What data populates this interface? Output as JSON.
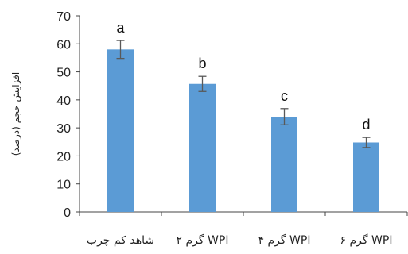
{
  "chart_data": {
    "type": "bar",
    "title": "",
    "xlabel": "",
    "ylabel": "افزایش حجم (درصد)",
    "ylim": [
      0,
      70
    ],
    "yticks": [
      0,
      10,
      20,
      30,
      40,
      50,
      60,
      70
    ],
    "grid": false,
    "categories": [
      "شاهد کم چرب",
      "۲ گرم WPI",
      "۴ گرم WPI",
      "۶ گرم WPI"
    ],
    "values": [
      58,
      45.7,
      34,
      24.8
    ],
    "error": [
      3.2,
      2.7,
      2.9,
      1.8
    ],
    "significance": [
      "a",
      "b",
      "c",
      "d"
    ],
    "bar_color": "#5b9bd5",
    "error_color": "#595959"
  }
}
